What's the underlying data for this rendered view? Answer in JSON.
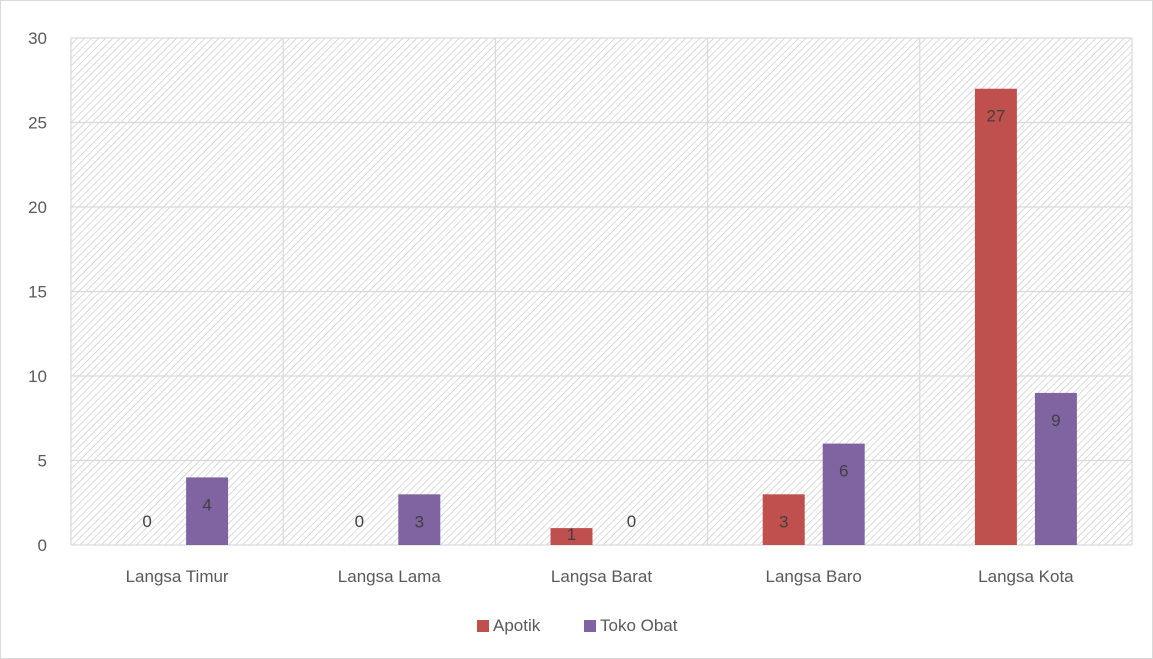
{
  "chart_data": {
    "type": "bar",
    "categories": [
      "Langsa Timur",
      "Langsa Lama",
      "Langsa Barat",
      "Langsa Baro",
      "Langsa Kota"
    ],
    "series": [
      {
        "name": "Apotik",
        "values": [
          0,
          0,
          1,
          3,
          27
        ],
        "color": "#c0504d"
      },
      {
        "name": "Toko Obat",
        "values": [
          4,
          3,
          0,
          6,
          9
        ],
        "color": "#8064a2"
      }
    ],
    "title": "",
    "xlabel": "",
    "ylabel": "",
    "ylim": [
      0,
      30
    ],
    "yticks": [
      0,
      5,
      10,
      15,
      20,
      25,
      30
    ],
    "grid": true,
    "plot_background": "hatched",
    "data_labels": true,
    "legend_position": "bottom"
  }
}
